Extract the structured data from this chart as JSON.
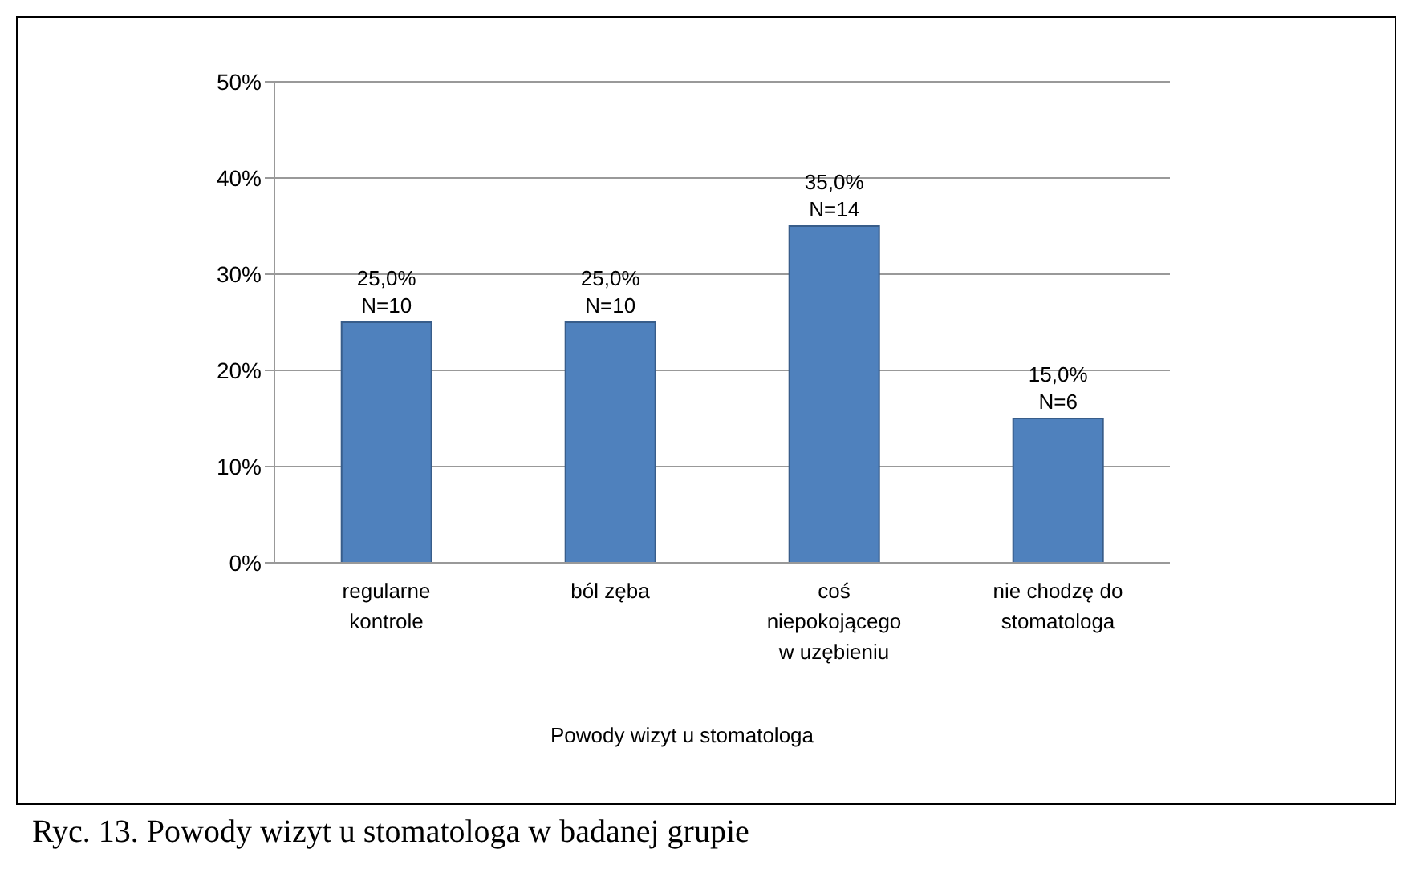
{
  "chart_data": {
    "type": "bar",
    "xlabel": "Powody wizyt  u stomatologa",
    "categories": [
      "regularne kontrole",
      "ból zęba",
      "coś niepokojącego w uzębieniu",
      "nie chodzę do stomatologa"
    ],
    "values": [
      25,
      25,
      35,
      15
    ],
    "color": "#4f81bd",
    "value_labels": [
      "25,0%\nN=10",
      "25,0%\nN=10",
      "35,0%\nN=14",
      "15,0%\nN=6"
    ],
    "ylim": [
      0,
      50
    ],
    "yticks": [
      {
        "value": 0,
        "label": "0%"
      },
      {
        "value": 10,
        "label": "10%"
      },
      {
        "value": 20,
        "label": "20%"
      },
      {
        "value": 30,
        "label": "30%"
      },
      {
        "value": 40,
        "label": "40%"
      },
      {
        "value": 50,
        "label": "50%"
      }
    ],
    "grid": "y",
    "legend": false,
    "annotations": [
      "Ryc. 13. Powody wizyt u stomatologa w badanej grupie"
    ]
  }
}
